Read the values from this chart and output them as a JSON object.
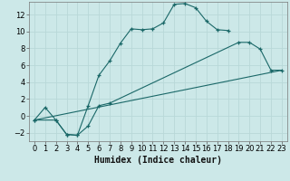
{
  "xlabel": "Humidex (Indice chaleur)",
  "background_color": "#cce8e8",
  "grid_color": "#b8d8d8",
  "line_color": "#1a6868",
  "xlim": [
    -0.5,
    23.5
  ],
  "ylim": [
    -3,
    13.5
  ],
  "xticks": [
    0,
    1,
    2,
    3,
    4,
    5,
    6,
    7,
    8,
    9,
    10,
    11,
    12,
    13,
    14,
    15,
    16,
    17,
    18,
    19,
    20,
    21,
    22,
    23
  ],
  "yticks": [
    -2,
    0,
    2,
    4,
    6,
    8,
    10,
    12
  ],
  "series1_x": [
    0,
    1,
    2,
    3,
    4,
    5,
    6,
    7,
    8,
    9,
    10,
    11,
    12,
    13,
    14,
    15,
    16,
    17,
    18
  ],
  "series1_y": [
    -0.5,
    1.0,
    -0.5,
    -2.2,
    -2.3,
    1.2,
    4.8,
    6.5,
    8.6,
    10.3,
    10.2,
    10.3,
    11.0,
    13.2,
    13.3,
    12.8,
    11.2,
    10.2,
    10.1
  ],
  "series2_x": [
    0,
    2,
    3,
    4,
    5,
    6,
    7,
    19,
    20,
    21,
    22,
    23
  ],
  "series2_y": [
    -0.5,
    -0.5,
    -2.2,
    -2.3,
    -1.2,
    1.2,
    1.5,
    8.7,
    8.7,
    7.9,
    5.4,
    5.4
  ],
  "series3_x": [
    0,
    23
  ],
  "series3_y": [
    -0.5,
    5.4
  ],
  "xlabel_fontsize": 7,
  "tick_fontsize": 6
}
